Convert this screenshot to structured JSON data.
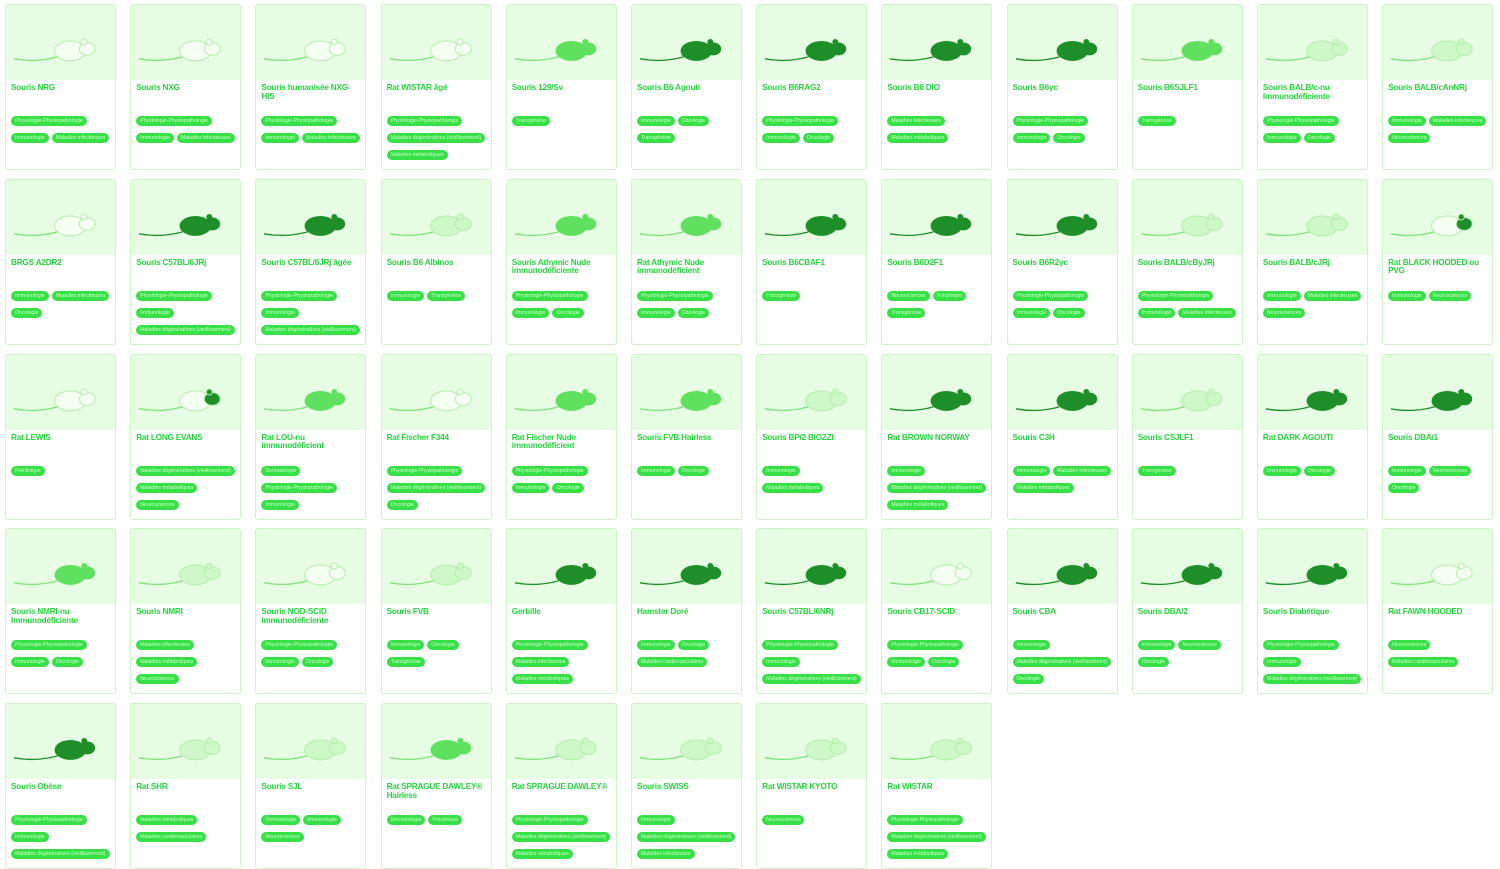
{
  "colors": {
    "accent": "#26d43a",
    "tag_bg": "#38e048",
    "tag_text": "#c8ffc2",
    "photo_bg": "#e7fde3",
    "border": "#c9f7c1"
  },
  "cards": [
    {
      "name": "Souris NRG",
      "animal": "white",
      "tags": [
        "Physiologie-Physiopathologie",
        "Immunologie",
        "Maladies infectieuses"
      ]
    },
    {
      "name": "Souris NXG",
      "animal": "white",
      "tags": [
        "Physiologie-Physiopathologie",
        "Immunologie",
        "Maladies infectieuses"
      ]
    },
    {
      "name": "Souris humanisée NXG-HIS",
      "animal": "white",
      "tags": [
        "Physiologie-Physiopathologie",
        "Immunologie",
        "Maladies infectieuses"
      ]
    },
    {
      "name": "Rat WISTAR âgé",
      "animal": "white",
      "tags": [
        "Physiologie-Physiopathologie",
        "Maladies dégénératives (vieillissement)",
        "Maladies métaboliques"
      ]
    },
    {
      "name": "Souris 129/Sv",
      "animal": "green",
      "tags": [
        "Transgénèse"
      ]
    },
    {
      "name": "Souris B6 Agouti",
      "animal": "dark",
      "tags": [
        "Immunologie",
        "Oncologie",
        "Transgénèse"
      ]
    },
    {
      "name": "Souris B6RAG2",
      "animal": "dark",
      "tags": [
        "Physiologie-Physiopathologie",
        "Immunologie",
        "Oncologie"
      ]
    },
    {
      "name": "Souris B6 DIO",
      "animal": "dark",
      "tags": [
        "Maladies infectieuses",
        "Maladies métaboliques"
      ]
    },
    {
      "name": "Souris B6γc",
      "animal": "dark",
      "tags": [
        "Physiologie-Physiopathologie",
        "Immunologie",
        "Oncologie"
      ]
    },
    {
      "name": "Souris B6SJLF1",
      "animal": "green",
      "tags": [
        "Transgénèse"
      ]
    },
    {
      "name": "Souris BALB/c-nu Immunodéficiente",
      "animal": "light",
      "tags": [
        "Physiologie-Physiopathologie",
        "Immunologie",
        "Oncologie"
      ]
    },
    {
      "name": "Souris BALB/cAnNRj",
      "animal": "light",
      "tags": [
        "Immunologie",
        "Maladies infectieuses",
        "Neurosciences"
      ]
    },
    {
      "name": "BRGS A2DR2",
      "animal": "white",
      "tags": [
        "Immunologie",
        "Maladies infectieuses",
        "Oncologie"
      ]
    },
    {
      "name": "Souris C57BL/6JRj",
      "animal": "dark",
      "tags": [
        "Physiologie-Physiopathologie",
        "Immunologie",
        "Maladies dégénératives (vieillissement)"
      ]
    },
    {
      "name": "Souris C57BL/6JRj âgée",
      "animal": "dark",
      "tags": [
        "Physiologie-Physiopathologie",
        "Immunologie",
        "Maladies dégénératives (vieillissement)"
      ]
    },
    {
      "name": "Souris B6 Albinos",
      "animal": "light",
      "tags": [
        "Immunologie",
        "Transgénèse"
      ]
    },
    {
      "name": "Souris Athymic Nude immunodéficiente",
      "animal": "green",
      "tags": [
        "Physiologie-Physiopathologie",
        "Immunologie",
        "Oncologie"
      ]
    },
    {
      "name": "Rat Athymic Nude immunodéficient",
      "animal": "green",
      "tags": [
        "Physiologie-Physiopathologie",
        "Immunologie",
        "Oncologie"
      ]
    },
    {
      "name": "Souris B6CBAF1",
      "animal": "dark",
      "tags": [
        "Transgénèse"
      ]
    },
    {
      "name": "Souris B6D2F1",
      "animal": "dark",
      "tags": [
        "Neurosciences",
        "Préclinique",
        "Transgénèse"
      ]
    },
    {
      "name": "Souris B6R2γc",
      "animal": "dark",
      "tags": [
        "Physiologie-Physiopathologie",
        "Immunologie",
        "Oncologie"
      ]
    },
    {
      "name": "Souris BALB/cByJRj",
      "animal": "light",
      "tags": [
        "Physiologie-Physiopathologie",
        "Immunologie",
        "Maladies infectieuses"
      ]
    },
    {
      "name": "Souris BALB/cJRj",
      "animal": "light",
      "tags": [
        "Immunologie",
        "Maladies infectieuses",
        "Neurosciences"
      ]
    },
    {
      "name": "Rat BLACK HOODED ou PVG",
      "animal": "hooded",
      "tags": [
        "Immunologie",
        "Neurosciences"
      ]
    },
    {
      "name": "Rat LEWIS",
      "animal": "white",
      "tags": [
        "Préclinique"
      ]
    },
    {
      "name": "Rat LONG EVANS",
      "animal": "hooded",
      "tags": [
        "Maladies dégénératives (vieillissement)",
        "Maladies métaboliques",
        "Neurosciences"
      ]
    },
    {
      "name": "Rat LOU-nu immunodéficient",
      "animal": "green",
      "tags": [
        "Dermatologie",
        "Physiologie-Physiopathologie",
        "Immunologie"
      ]
    },
    {
      "name": "Rat Fischer F344",
      "animal": "white",
      "tags": [
        "Physiologie-Physiopathologie",
        "Maladies dégénératives (vieillissement)",
        "Oncologie"
      ]
    },
    {
      "name": "Rat Fischer Nude immunodéficient",
      "animal": "green",
      "tags": [
        "Physiologie-Physiopathologie",
        "Immunologie",
        "Oncologie"
      ]
    },
    {
      "name": "Souris FVB Hairless",
      "animal": "green",
      "tags": [
        "Immunologie",
        "Oncologie"
      ]
    },
    {
      "name": "Souris BP/2 BIOZZI",
      "animal": "light",
      "tags": [
        "Immunologie",
        "Maladies métaboliques"
      ]
    },
    {
      "name": "Rat BROWN NORWAY",
      "animal": "dark",
      "tags": [
        "Immunologie",
        "Maladies dégénératives (vieillissement)",
        "Maladies métaboliques"
      ]
    },
    {
      "name": "Souris C3H",
      "animal": "dark",
      "tags": [
        "Immunologie",
        "Maladies infectieuses",
        "Maladies métaboliques"
      ]
    },
    {
      "name": "Souris CSJLF1",
      "animal": "light",
      "tags": [
        "Transgénèse"
      ]
    },
    {
      "name": "Rat DARK AGOUTI",
      "animal": "dark",
      "tags": [
        "Immunologie",
        "Oncologie"
      ]
    },
    {
      "name": "Souris DBA/1",
      "animal": "dark",
      "tags": [
        "Immunologie",
        "Neurosciences",
        "Oncologie"
      ]
    },
    {
      "name": "Souris NMRI-nu Immunodéficiente",
      "animal": "green",
      "tags": [
        "Physiologie-Physiopathologie",
        "Immunologie",
        "Oncologie"
      ]
    },
    {
      "name": "Souris NMRI",
      "animal": "light",
      "tags": [
        "Maladies infectieuses",
        "Maladies métaboliques",
        "Neurosciences"
      ]
    },
    {
      "name": "Souris NOD-SCID immunodéficiente",
      "animal": "white",
      "tags": [
        "Physiologie-Physiopathologie",
        "Immunologie",
        "Oncologie"
      ]
    },
    {
      "name": "Souris FVB",
      "animal": "light",
      "tags": [
        "Immunologie",
        "Oncologie",
        "Transgénèse"
      ]
    },
    {
      "name": "Gerbille",
      "animal": "dark",
      "tags": [
        "Physiologie-Physiopathologie",
        "Maladies infectieuses",
        "Maladies métaboliques"
      ]
    },
    {
      "name": "Hamster Doré",
      "animal": "dark",
      "tags": [
        "Immunologie",
        "Oncologie",
        "Maladies cardiovasculaires"
      ]
    },
    {
      "name": "Souris C57BL/6NRj",
      "animal": "dark",
      "tags": [
        "Physiologie-Physiopathologie",
        "Immunologie",
        "Maladies dégénératives (vieillissement)"
      ]
    },
    {
      "name": "Souris CB17-SCID",
      "animal": "white",
      "tags": [
        "Physiologie-Physiopathologie",
        "Immunologie",
        "Oncologie"
      ]
    },
    {
      "name": "Souris CBA",
      "animal": "dark",
      "tags": [
        "Immunologie",
        "Maladies dégénératives (vieillissement)",
        "Oncologie"
      ]
    },
    {
      "name": "Souris DBA/2",
      "animal": "dark",
      "tags": [
        "Immunologie",
        "Neurosciences",
        "Oncologie"
      ]
    },
    {
      "name": "Souris Diabétique",
      "animal": "dark",
      "tags": [
        "Physiologie-Physiopathologie",
        "Immunologie",
        "Maladies dégénératives (vieillissement)"
      ]
    },
    {
      "name": "Rat FAWN HOODED",
      "animal": "white",
      "tags": [
        "Neurosciences",
        "Maladies cardiovasculaires"
      ]
    },
    {
      "name": "Souris Obèse",
      "animal": "dark",
      "tags": [
        "Physiologie-Physiopathologie",
        "Immunologie",
        "Maladies dégénératives (vieillissement)"
      ]
    },
    {
      "name": "Rat SHR",
      "animal": "light",
      "tags": [
        "Maladies métaboliques",
        "Maladies cardiovasculaires"
      ]
    },
    {
      "name": "Souris SJL",
      "animal": "light",
      "tags": [
        "Dermatologie",
        "Immunologie",
        "Neurosciences"
      ]
    },
    {
      "name": "Rat SPRAGUE DAWLEY® Hairless",
      "animal": "green",
      "tags": [
        "Dermatologie",
        "Préclinique"
      ]
    },
    {
      "name": "Rat SPRAGUE DAWLEY®",
      "animal": "light",
      "tags": [
        "Physiologie-Physiopathologie",
        "Maladies dégénératives (vieillissement)",
        "Maladies métaboliques"
      ]
    },
    {
      "name": "Souris SWISS",
      "animal": "light",
      "tags": [
        "Immunologie",
        "Maladies dégénératives (vieillissement)",
        "Maladies infectieuses"
      ]
    },
    {
      "name": "Rat WISTAR KYOTO",
      "animal": "light",
      "tags": [
        "Neurosciences"
      ]
    },
    {
      "name": "Rat WISTAR",
      "animal": "light",
      "tags": [
        "Physiologie-Physiopathologie",
        "Maladies dégénératives (vieillissement)",
        "Maladies métaboliques"
      ]
    }
  ]
}
